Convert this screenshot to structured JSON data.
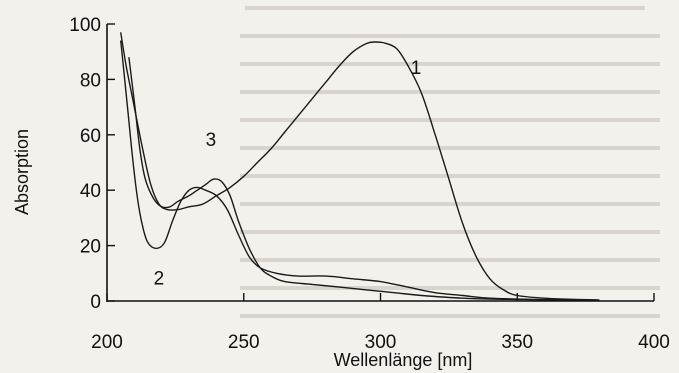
{
  "chart_data": {
    "type": "line",
    "xlabel": "Wellenlänge [nm]",
    "ylabel": "Absorption",
    "xlim": [
      200,
      400
    ],
    "ylim": [
      0,
      100
    ],
    "x_ticks": [
      200,
      250,
      300,
      350,
      400
    ],
    "y_ticks": [
      0,
      20,
      40,
      60,
      80,
      100
    ],
    "grid": false,
    "series": [
      {
        "name": "1",
        "points": [
          [
            205,
            97
          ],
          [
            207,
            85
          ],
          [
            210,
            70
          ],
          [
            213,
            55
          ],
          [
            216,
            42
          ],
          [
            219,
            35
          ],
          [
            222,
            33
          ],
          [
            226,
            33
          ],
          [
            230,
            34
          ],
          [
            235,
            35
          ],
          [
            240,
            38
          ],
          [
            245,
            41
          ],
          [
            250,
            45
          ],
          [
            255,
            50
          ],
          [
            260,
            55
          ],
          [
            265,
            61
          ],
          [
            270,
            67
          ],
          [
            275,
            73
          ],
          [
            280,
            79
          ],
          [
            285,
            85
          ],
          [
            290,
            90
          ],
          [
            295,
            93
          ],
          [
            298,
            93.5
          ],
          [
            302,
            93
          ],
          [
            306,
            91
          ],
          [
            310,
            85
          ],
          [
            315,
            75
          ],
          [
            320,
            60
          ],
          [
            325,
            44
          ],
          [
            330,
            28
          ],
          [
            335,
            16
          ],
          [
            340,
            8
          ],
          [
            345,
            4
          ],
          [
            350,
            2
          ],
          [
            360,
            1
          ],
          [
            370,
            0.6
          ],
          [
            380,
            0.4
          ]
        ]
      },
      {
        "name": "2",
        "points": [
          [
            205,
            94
          ],
          [
            207,
            75
          ],
          [
            209,
            55
          ],
          [
            211,
            38
          ],
          [
            213,
            27
          ],
          [
            215,
            21
          ],
          [
            218,
            19
          ],
          [
            221,
            21
          ],
          [
            224,
            29
          ],
          [
            227,
            36
          ],
          [
            230,
            40
          ],
          [
            233,
            41
          ],
          [
            236,
            40
          ],
          [
            240,
            38
          ],
          [
            244,
            33
          ],
          [
            248,
            24
          ],
          [
            252,
            16
          ],
          [
            256,
            12
          ],
          [
            262,
            10
          ],
          [
            270,
            9
          ],
          [
            280,
            9
          ],
          [
            290,
            8
          ],
          [
            300,
            7
          ],
          [
            310,
            5
          ],
          [
            320,
            3
          ],
          [
            330,
            2
          ],
          [
            340,
            1
          ],
          [
            360,
            0.5
          ],
          [
            380,
            0.3
          ]
        ]
      },
      {
        "name": "3",
        "points": [
          [
            208,
            88
          ],
          [
            210,
            72
          ],
          [
            212,
            55
          ],
          [
            214,
            44
          ],
          [
            217,
            37
          ],
          [
            220,
            34
          ],
          [
            223,
            34
          ],
          [
            226,
            36
          ],
          [
            230,
            38
          ],
          [
            233,
            40
          ],
          [
            236,
            42
          ],
          [
            239,
            44
          ],
          [
            242,
            43
          ],
          [
            245,
            38
          ],
          [
            248,
            29
          ],
          [
            252,
            19
          ],
          [
            256,
            12
          ],
          [
            260,
            9
          ],
          [
            265,
            7
          ],
          [
            275,
            6
          ],
          [
            285,
            5
          ],
          [
            295,
            4
          ],
          [
            305,
            3
          ],
          [
            315,
            2
          ],
          [
            330,
            1
          ],
          [
            345,
            0.6
          ],
          [
            380,
            0.3
          ]
        ]
      }
    ],
    "annotations": [
      {
        "text": "1",
        "x": 313,
        "y": 82
      },
      {
        "text": "2",
        "x": 219,
        "y": 6
      },
      {
        "text": "3",
        "x": 238,
        "y": 56
      }
    ]
  }
}
